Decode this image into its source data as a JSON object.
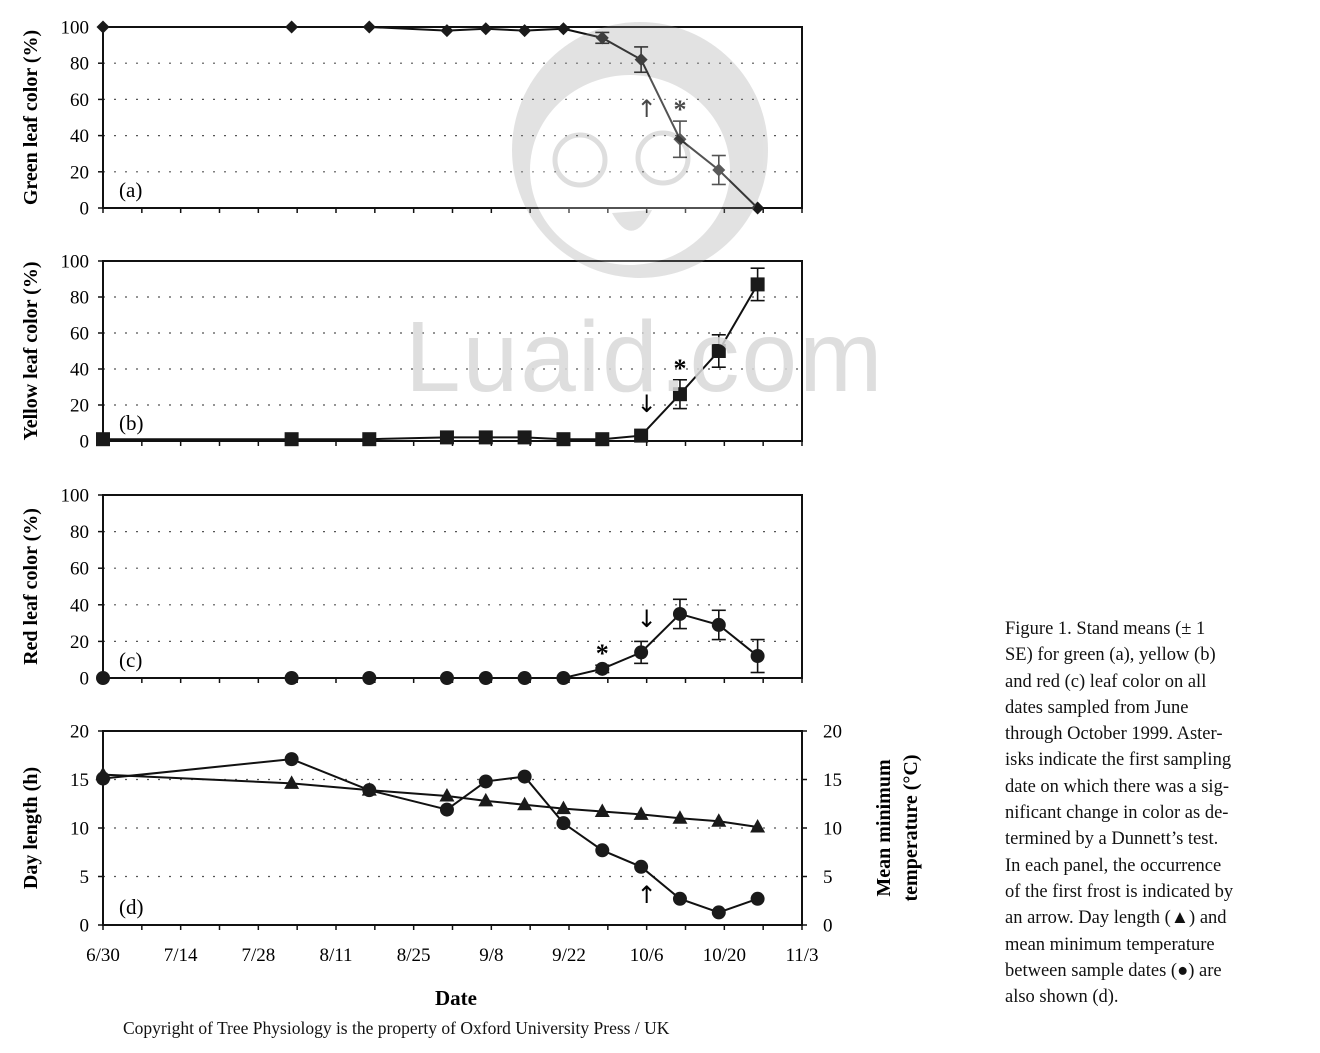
{
  "chart_data": [
    {
      "id": "a",
      "type": "line",
      "panel_label": "(a)",
      "ylabel": "Green leaf color (%)",
      "ylim": [
        0,
        100
      ],
      "yticks": [
        "0",
        "20",
        "40",
        "60",
        "80",
        "100"
      ],
      "grid": "dotted horizontal",
      "marker": "diamond",
      "series": [
        {
          "x": [
            "6/30",
            "8/3",
            "8/17",
            "8/31",
            "9/7",
            "9/14",
            "9/21",
            "9/28",
            "10/5",
            "10/12",
            "10/19",
            "10/26"
          ],
          "y": [
            100,
            100,
            100,
            98,
            99,
            98,
            99,
            94,
            82,
            38,
            21,
            0
          ],
          "err": [
            0,
            0,
            0,
            0,
            0,
            0,
            0,
            3,
            7,
            10,
            8,
            0
          ]
        }
      ],
      "annotations": [
        {
          "type": "asterisk",
          "x": "10/12",
          "text": "*"
        },
        {
          "type": "arrow-up",
          "x": "10/6",
          "text": "↑"
        }
      ]
    },
    {
      "id": "b",
      "type": "line",
      "panel_label": "(b)",
      "ylabel": "Yellow leaf color (%)",
      "ylim": [
        0,
        100
      ],
      "yticks": [
        "0",
        "20",
        "40",
        "60",
        "80",
        "100"
      ],
      "grid": "dotted horizontal",
      "marker": "square",
      "series": [
        {
          "x": [
            "6/30",
            "8/3",
            "8/17",
            "8/31",
            "9/7",
            "9/14",
            "9/21",
            "9/28",
            "10/5",
            "10/12",
            "10/19",
            "10/26"
          ],
          "y": [
            1,
            1,
            1,
            2,
            2,
            2,
            1,
            1,
            3,
            26,
            50,
            87
          ],
          "err": [
            0,
            0,
            0,
            0,
            0,
            0,
            0,
            0,
            0,
            8,
            9,
            9
          ]
        }
      ],
      "annotations": [
        {
          "type": "asterisk",
          "x": "10/12",
          "text": "*"
        },
        {
          "type": "arrow-down",
          "x": "10/6",
          "text": "↓"
        }
      ]
    },
    {
      "id": "c",
      "type": "line",
      "panel_label": "(c)",
      "ylabel": "Red leaf color (%)",
      "ylim": [
        0,
        100
      ],
      "yticks": [
        "0",
        "20",
        "40",
        "60",
        "80",
        "100"
      ],
      "grid": "dotted horizontal",
      "marker": "circle",
      "series": [
        {
          "x": [
            "6/30",
            "8/3",
            "8/17",
            "8/31",
            "9/7",
            "9/14",
            "9/21",
            "9/28",
            "10/5",
            "10/12",
            "10/19",
            "10/26"
          ],
          "y": [
            0,
            0,
            0,
            0,
            0,
            0,
            0,
            5,
            14,
            35,
            29,
            12
          ],
          "err": [
            0,
            0,
            0,
            0,
            0,
            0,
            0,
            2,
            6,
            8,
            8,
            9
          ]
        }
      ],
      "annotations": [
        {
          "type": "asterisk",
          "x": "9/28",
          "text": "*"
        },
        {
          "type": "arrow-down",
          "x": "10/6",
          "text": "↓"
        }
      ]
    },
    {
      "id": "d",
      "type": "line",
      "panel_label": "(d)",
      "ylabel": "Day length (h)",
      "ylabel_right_lines": [
        "Mean minimum",
        "temperature (°C)"
      ],
      "ylim": [
        0,
        20
      ],
      "yticks": [
        "0",
        "5",
        "10",
        "15",
        "20"
      ],
      "grid": "dotted horizontal",
      "xlabel": "Date",
      "xticks": [
        "6/30",
        "7/14",
        "7/28",
        "8/11",
        "8/25",
        "9/8",
        "9/22",
        "10/6",
        "10/20",
        "11/3"
      ],
      "series": [
        {
          "marker": "triangle",
          "x": [
            "6/30",
            "8/3",
            "8/17",
            "8/31",
            "9/7",
            "9/14",
            "9/21",
            "9/28",
            "10/5",
            "10/12",
            "10/19",
            "10/26"
          ],
          "y": [
            15.5,
            14.6,
            13.9,
            13.3,
            12.8,
            12.4,
            12.0,
            11.7,
            11.4,
            11.0,
            10.7,
            10.1
          ]
        },
        {
          "marker": "circle",
          "x": [
            "6/30",
            "8/3",
            "8/17",
            "8/31",
            "9/7",
            "9/14",
            "9/21",
            "9/28",
            "10/5",
            "10/12",
            "10/19",
            "10/26"
          ],
          "y": [
            15.1,
            17.1,
            13.9,
            11.9,
            14.8,
            15.3,
            10.5,
            7.7,
            6.0,
            2.7,
            1.3,
            2.7
          ]
        }
      ],
      "annotations": [
        {
          "type": "arrow-up",
          "x": "10/6",
          "text": "↑"
        }
      ]
    }
  ],
  "caption_lines": [
    "Figure 1. Stand means (± 1",
    "SE) for green (a), yellow (b)",
    "and red (c) leaf color on all",
    "dates sampled from June",
    "through October 1999. Aster-",
    "isks indicate the first sampling",
    "date on which there was a sig-",
    "nificant change in color as de-",
    "termined by a Dunnett’s test.",
    "In each panel, the occurrence",
    "of the first frost is indicated by",
    "an arrow. Day length (▲) and",
    "mean minimum temperature",
    "between sample dates (●) are",
    "also shown (d)."
  ],
  "copyright": "Copyright of Tree Physiology is the property of Oxford University Press / UK",
  "watermark": "Luaid.com"
}
